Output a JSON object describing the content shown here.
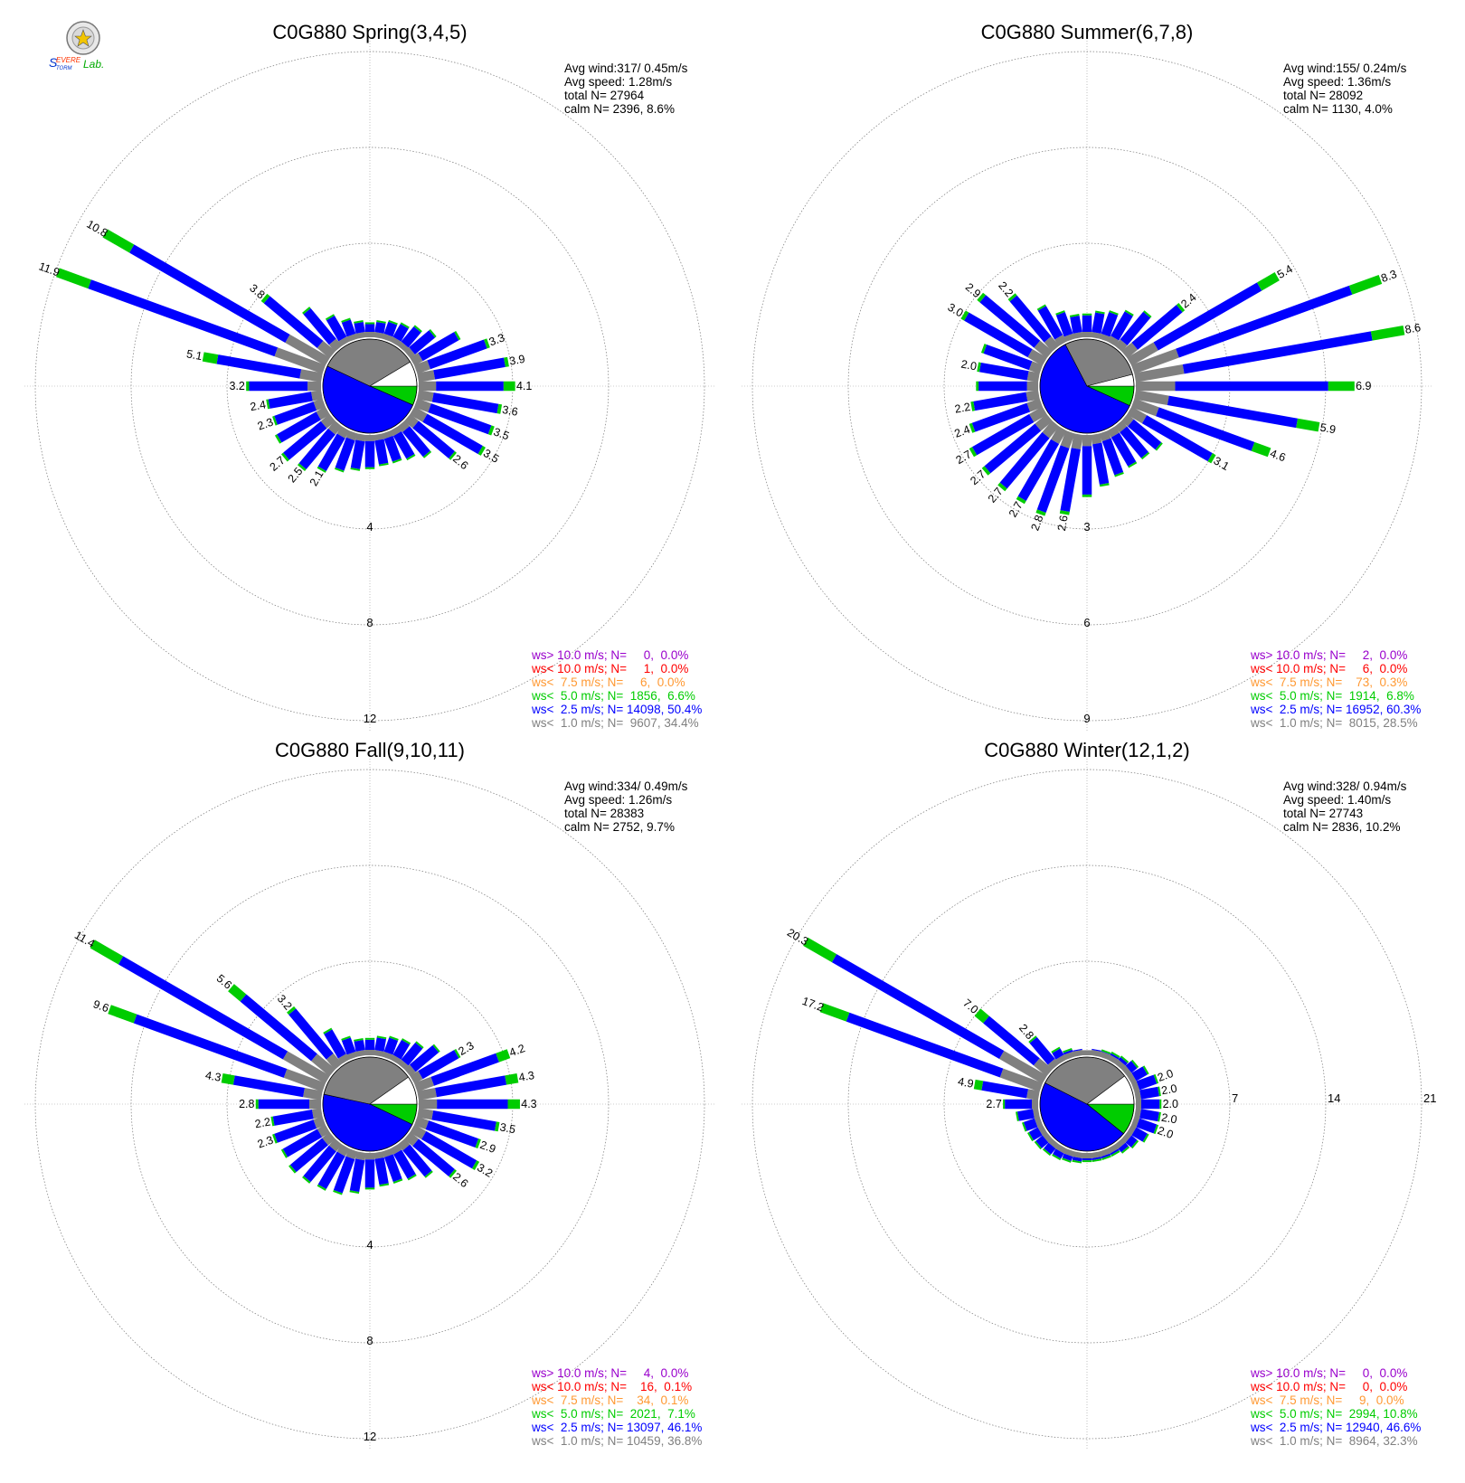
{
  "logo": {
    "text": "Severe Storm Lab."
  },
  "colors": {
    "purple": "#9900cc",
    "red": "#ff0000",
    "orange": "#ff9933",
    "green": "#00cc00",
    "blue": "#0000ff",
    "gray": "#808080"
  },
  "chart_data": [
    {
      "type": "wind-rose",
      "title": "C0G880 Spring(3,4,5)",
      "stats": [
        "Avg wind:317/ 0.45m/s",
        "Avg speed: 1.28m/s",
        "total N=      27964",
        "calm N=  2396,   8.6%"
      ],
      "ring_labels": [
        "4",
        "8",
        "12"
      ],
      "ring_values": [
        4,
        8,
        12
      ],
      "pie": {
        "calm": 8.6,
        "gray": 34.4,
        "blue": 50.4,
        "green": 6.6
      },
      "sectors": 36,
      "values": [
        0.7,
        0.8,
        0.9,
        1.0,
        1.2,
        1.5,
        2.3,
        3.3,
        3.9,
        4.1,
        3.6,
        3.5,
        3.5,
        2.6,
        1.8,
        1.5,
        1.4,
        1.4,
        1.5,
        1.6,
        1.8,
        2.1,
        2.5,
        2.7,
        2.5,
        2.3,
        2.4,
        3.2,
        5.1,
        11.9,
        10.8,
        3.8,
        2.2,
        1.4,
        1.0,
        0.8
      ],
      "value_labels": [
        {
          "sector": 7,
          "text": "3.3"
        },
        {
          "sector": 8,
          "text": "3.9"
        },
        {
          "sector": 9,
          "text": "4.1"
        },
        {
          "sector": 10,
          "text": "3.6"
        },
        {
          "sector": 11,
          "text": "3.5"
        },
        {
          "sector": 12,
          "text": "3.5"
        },
        {
          "sector": 13,
          "text": "2.6"
        },
        {
          "sector": 21,
          "text": "2.1"
        },
        {
          "sector": 22,
          "text": "2.5"
        },
        {
          "sector": 23,
          "text": "2.7"
        },
        {
          "sector": 25,
          "text": "2.3"
        },
        {
          "sector": 26,
          "text": "2.4"
        },
        {
          "sector": 27,
          "text": "3.2"
        },
        {
          "sector": 28,
          "text": "5.1"
        },
        {
          "sector": 29,
          "text": "11.9"
        },
        {
          "sector": 30,
          "text": "10.8"
        },
        {
          "sector": 31,
          "text": "3.8"
        }
      ],
      "legend": [
        {
          "text": "ws> 10.0 m/s; N=     0,  0.0%",
          "color": "purple"
        },
        {
          "text": "ws< 10.0 m/s; N=     1,  0.0%",
          "color": "red"
        },
        {
          "text": "ws<  7.5 m/s; N=     6,  0.0%",
          "color": "orange"
        },
        {
          "text": "ws<  5.0 m/s; N=  1856,  6.6%",
          "color": "green"
        },
        {
          "text": "ws<  2.5 m/s; N= 14098, 50.4%",
          "color": "blue"
        },
        {
          "text": "ws<  1.0 m/s; N=  9607, 34.4%",
          "color": "gray"
        }
      ]
    },
    {
      "type": "wind-rose",
      "title": "C0G880 Summer(6,7,8)",
      "stats": [
        "Avg wind:155/ 0.24m/s",
        "Avg speed: 1.36m/s",
        "total N=      28092",
        "calm N=  1130,   4.0%"
      ],
      "ring_labels": [
        "3",
        "6",
        "9"
      ],
      "ring_values": [
        3,
        6,
        9
      ],
      "pie": {
        "calm": 4.0,
        "gray": 28.5,
        "blue": 60.3,
        "green": 6.8
      },
      "sectors": 36,
      "values": [
        0.8,
        0.9,
        1.0,
        1.2,
        1.5,
        2.4,
        5.4,
        8.3,
        8.6,
        6.9,
        5.9,
        4.6,
        3.1,
        1.5,
        1.4,
        1.4,
        1.5,
        1.7,
        2.0,
        2.6,
        2.8,
        2.7,
        2.7,
        2.7,
        2.7,
        2.4,
        2.2,
        2.0,
        2.0,
        2.0,
        3.0,
        2.9,
        2.2,
        1.4,
        1.0,
        0.8
      ],
      "value_labels": [
        {
          "sector": 5,
          "text": "2.4"
        },
        {
          "sector": 6,
          "text": "5.4"
        },
        {
          "sector": 7,
          "text": "8.3"
        },
        {
          "sector": 8,
          "text": "8.6"
        },
        {
          "sector": 9,
          "text": "6.9"
        },
        {
          "sector": 10,
          "text": "5.9"
        },
        {
          "sector": 11,
          "text": "4.6"
        },
        {
          "sector": 12,
          "text": "3.1"
        },
        {
          "sector": 19,
          "text": "2.6"
        },
        {
          "sector": 20,
          "text": "2.8"
        },
        {
          "sector": 21,
          "text": "2.7"
        },
        {
          "sector": 22,
          "text": "2.7"
        },
        {
          "sector": 23,
          "text": "2.7"
        },
        {
          "sector": 24,
          "text": "2.7"
        },
        {
          "sector": 25,
          "text": "2.4"
        },
        {
          "sector": 26,
          "text": "2.2"
        },
        {
          "sector": 28,
          "text": "2.0"
        },
        {
          "sector": 30,
          "text": "3.0"
        },
        {
          "sector": 31,
          "text": "2.9"
        },
        {
          "sector": 32,
          "text": "2.2"
        }
      ],
      "legend": [
        {
          "text": "ws> 10.0 m/s; N=     2,  0.0%",
          "color": "purple"
        },
        {
          "text": "ws< 10.0 m/s; N=     6,  0.0%",
          "color": "red"
        },
        {
          "text": "ws<  7.5 m/s; N=    73,  0.3%",
          "color": "orange"
        },
        {
          "text": "ws<  5.0 m/s; N=  1914,  6.8%",
          "color": "green"
        },
        {
          "text": "ws<  2.5 m/s; N= 16952, 60.3%",
          "color": "blue"
        },
        {
          "text": "ws<  1.0 m/s; N=  8015, 28.5%",
          "color": "gray"
        }
      ]
    },
    {
      "type": "wind-rose",
      "title": "C0G880 Fall(9,10,11)",
      "stats": [
        "Avg wind:334/ 0.49m/s",
        "Avg speed: 1.26m/s",
        "total N=      28383",
        "calm N=  2752,   9.7%"
      ],
      "ring_labels": [
        "4",
        "8",
        "12"
      ],
      "ring_values": [
        4,
        8,
        12
      ],
      "pie": {
        "calm": 9.7,
        "gray": 36.8,
        "blue": 46.1,
        "green": 7.1
      },
      "sectors": 36,
      "values": [
        0.8,
        0.9,
        1.0,
        1.1,
        1.3,
        1.7,
        2.3,
        4.2,
        4.3,
        4.3,
        3.5,
        2.9,
        3.2,
        2.6,
        1.9,
        1.6,
        1.5,
        1.5,
        1.6,
        1.8,
        2.0,
        2.1,
        2.2,
        2.3,
        2.2,
        2.3,
        2.2,
        2.8,
        4.3,
        9.6,
        11.4,
        5.6,
        3.2,
        1.6,
        1.0,
        0.8
      ],
      "value_labels": [
        {
          "sector": 6,
          "text": "2.3"
        },
        {
          "sector": 7,
          "text": "4.2"
        },
        {
          "sector": 8,
          "text": "4.3"
        },
        {
          "sector": 9,
          "text": "4.3"
        },
        {
          "sector": 10,
          "text": "3.5"
        },
        {
          "sector": 11,
          "text": "2.9"
        },
        {
          "sector": 12,
          "text": "3.2"
        },
        {
          "sector": 13,
          "text": "2.6"
        },
        {
          "sector": 25,
          "text": "2.3"
        },
        {
          "sector": 26,
          "text": "2.2"
        },
        {
          "sector": 27,
          "text": "2.8"
        },
        {
          "sector": 28,
          "text": "4.3"
        },
        {
          "sector": 29,
          "text": "9.6"
        },
        {
          "sector": 30,
          "text": "11.4"
        },
        {
          "sector": 31,
          "text": "5.6"
        },
        {
          "sector": 32,
          "text": "3.2"
        }
      ],
      "legend": [
        {
          "text": "ws> 10.0 m/s; N=     4,  0.0%",
          "color": "purple"
        },
        {
          "text": "ws< 10.0 m/s; N=    16,  0.1%",
          "color": "red"
        },
        {
          "text": "ws<  7.5 m/s; N=    34,  0.1%",
          "color": "orange"
        },
        {
          "text": "ws<  5.0 m/s; N=  2021,  7.1%",
          "color": "green"
        },
        {
          "text": "ws<  2.5 m/s; N= 13097, 46.1%",
          "color": "blue"
        },
        {
          "text": "ws<  1.0 m/s; N= 10459, 36.8%",
          "color": "gray"
        }
      ]
    },
    {
      "type": "wind-rose",
      "title": "C0G880 Winter(12,1,2)",
      "stats": [
        "Avg wind:328/ 0.94m/s",
        "Avg speed: 1.40m/s",
        "total N=      27743",
        "calm N=  2836,  10.2%"
      ],
      "ring_labels": [
        "7",
        "14",
        "21"
      ],
      "ring_values": [
        7,
        14,
        21
      ],
      "ring_label_side": "right",
      "pie": {
        "calm": 10.2,
        "gray": 32.3,
        "blue": 46.6,
        "green": 10.8
      },
      "sectors": 36,
      "values": [
        0.5,
        0.6,
        0.7,
        0.8,
        0.9,
        1.2,
        1.6,
        2.0,
        2.0,
        2.0,
        2.0,
        2.0,
        1.6,
        1.2,
        1.0,
        0.8,
        0.8,
        0.8,
        0.8,
        0.9,
        1.0,
        1.1,
        1.2,
        1.3,
        1.4,
        1.5,
        1.8,
        2.7,
        4.9,
        17.2,
        20.3,
        7.0,
        2.8,
        1.2,
        0.8,
        0.6
      ],
      "value_labels": [
        {
          "sector": 7,
          "text": "2.0"
        },
        {
          "sector": 8,
          "text": "2.0"
        },
        {
          "sector": 9,
          "text": "2.0"
        },
        {
          "sector": 10,
          "text": "2.0"
        },
        {
          "sector": 11,
          "text": "2.0"
        },
        {
          "sector": 27,
          "text": "2.7"
        },
        {
          "sector": 28,
          "text": "4.9"
        },
        {
          "sector": 29,
          "text": "17.2"
        },
        {
          "sector": 30,
          "text": "20.3"
        },
        {
          "sector": 31,
          "text": "7.0"
        },
        {
          "sector": 32,
          "text": "2.8"
        }
      ],
      "legend": [
        {
          "text": "ws> 10.0 m/s; N=     0,  0.0%",
          "color": "purple"
        },
        {
          "text": "ws< 10.0 m/s; N=     0,  0.0%",
          "color": "red"
        },
        {
          "text": "ws<  7.5 m/s; N=     9,  0.0%",
          "color": "orange"
        },
        {
          "text": "ws<  5.0 m/s; N=  2994, 10.8%",
          "color": "green"
        },
        {
          "text": "ws<  2.5 m/s; N= 12940, 46.6%",
          "color": "blue"
        },
        {
          "text": "ws<  1.0 m/s; N=  8964, 32.3%",
          "color": "gray"
        }
      ]
    }
  ]
}
